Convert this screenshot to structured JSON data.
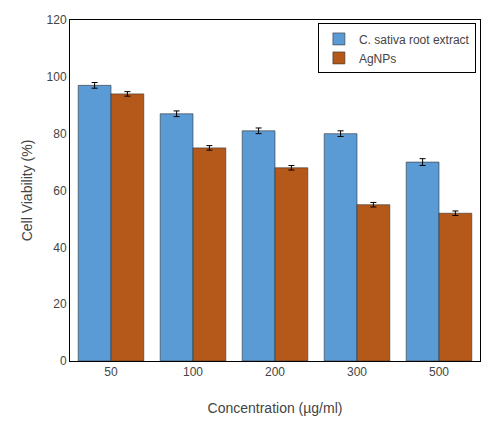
{
  "chart_data": {
    "type": "bar",
    "xlabel": "Concentration (µg/ml)",
    "ylabel": "Cell Viability (%)",
    "categories": [
      "50",
      "100",
      "200",
      "300",
      "500"
    ],
    "series": [
      {
        "name": "C. sativa root extract",
        "color": "#5B9BD5",
        "values": [
          97,
          87,
          81,
          80,
          70
        ],
        "errors": [
          1.0,
          1.0,
          1.0,
          1.0,
          1.2
        ]
      },
      {
        "name": "AgNPs",
        "color": "#B5591A",
        "values": [
          94,
          75,
          68,
          55,
          52
        ],
        "errors": [
          0.8,
          0.8,
          0.8,
          0.8,
          0.8
        ]
      }
    ],
    "ylim": [
      0,
      120
    ],
    "yticks": [
      0,
      20,
      40,
      60,
      80,
      100,
      120
    ],
    "grid": false,
    "legend": "upper right"
  }
}
